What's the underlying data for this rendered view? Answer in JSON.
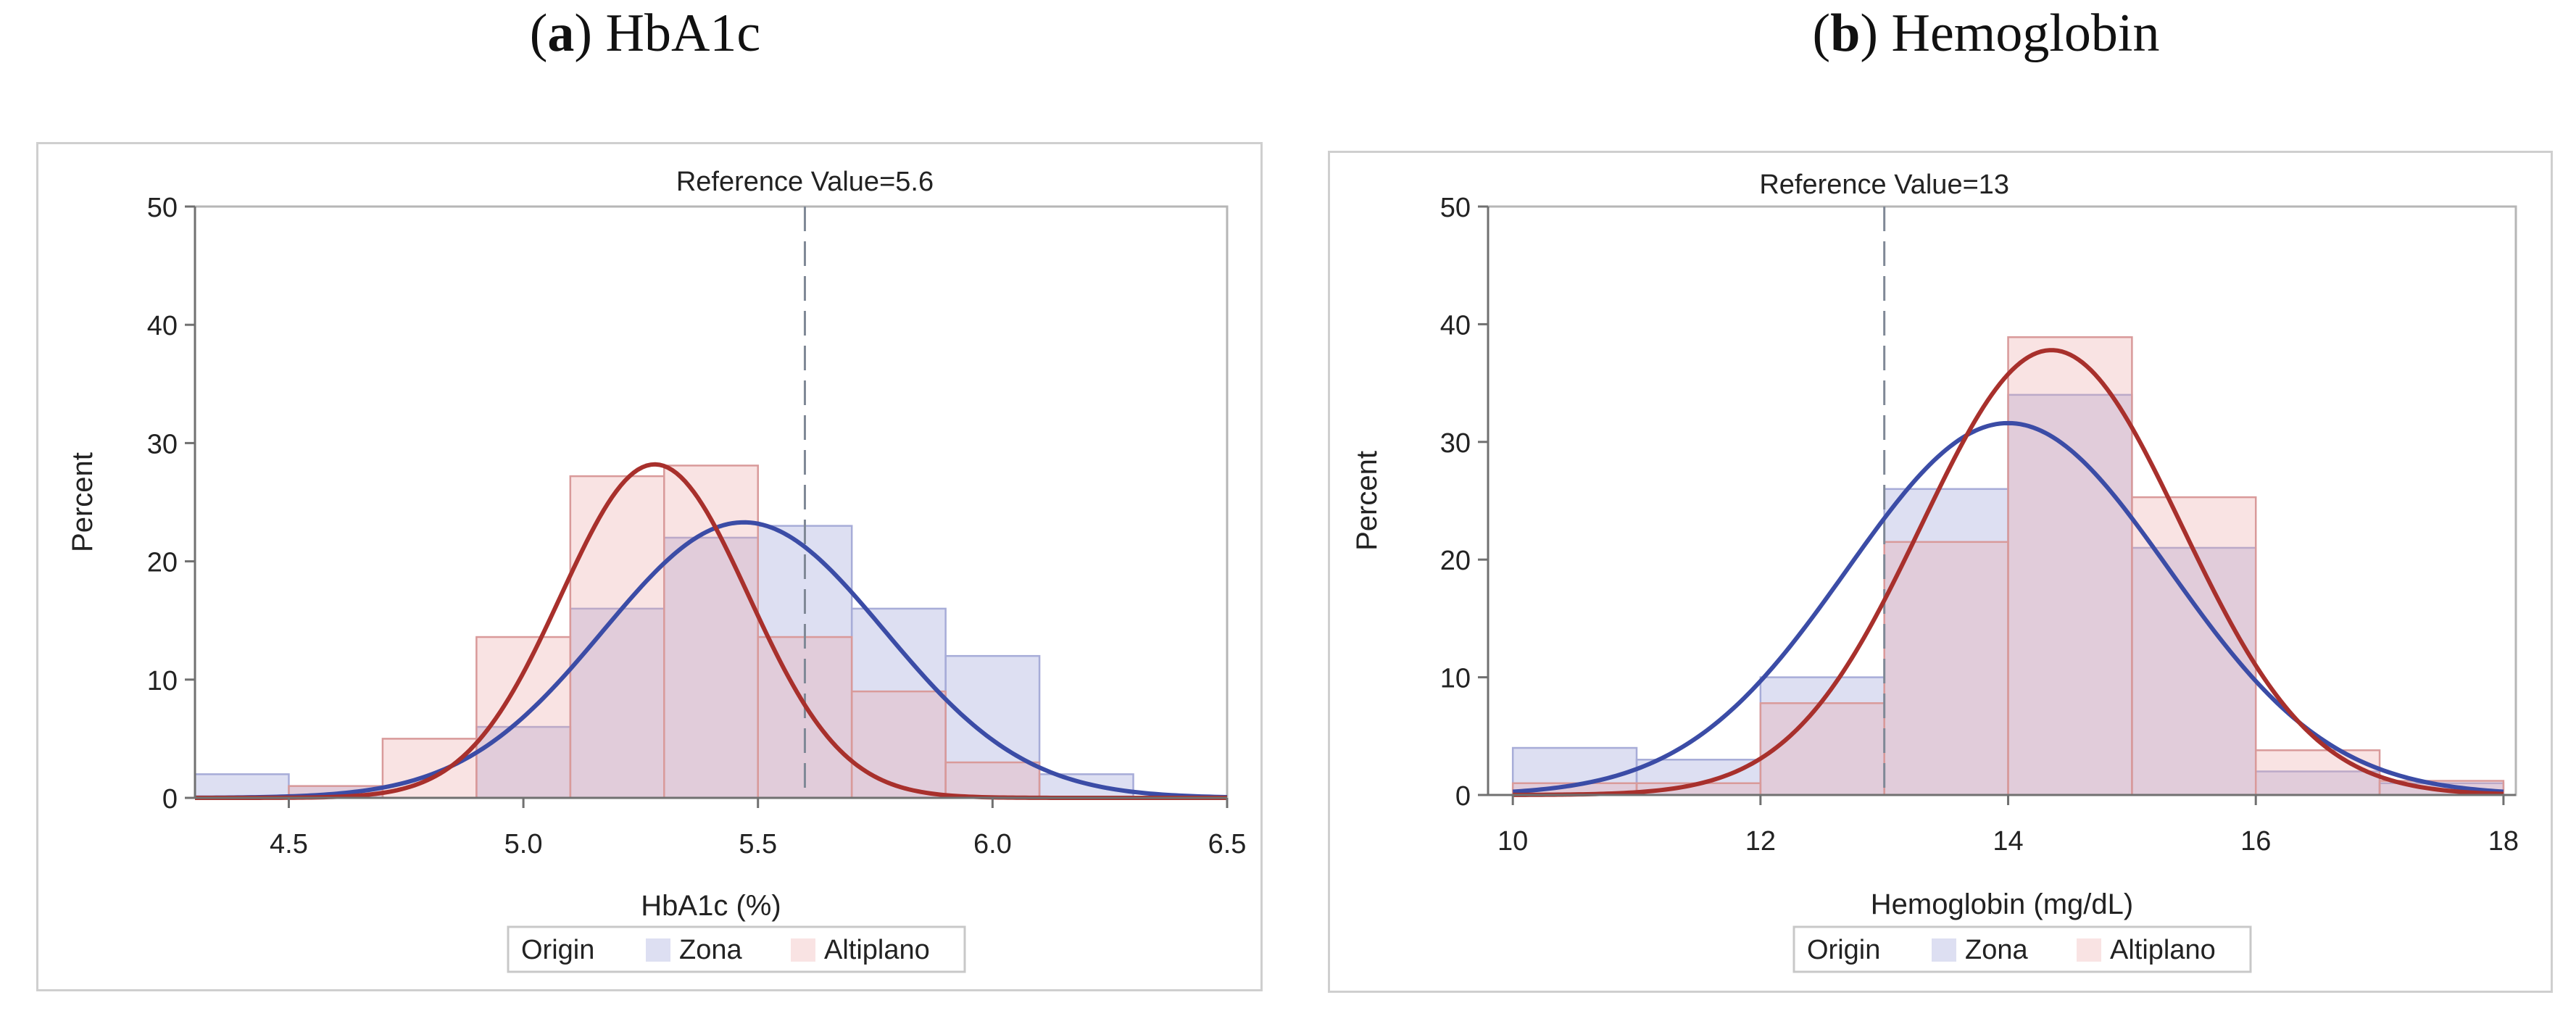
{
  "panels": {
    "a": {
      "label": "a",
      "title": "HbA1c"
    },
    "b": {
      "label": "b",
      "title": "Hemoglobin"
    }
  },
  "colors": {
    "zona_fill": "#8f96d4",
    "altiplano_fill": "#eca1a1",
    "zona_curve": "#3b4ca6",
    "altiplano_curve": "#a8302c",
    "reference_line": "#7f8896",
    "axis": "#707070",
    "plot_border": "#b6b6b6"
  },
  "chart_data": [
    {
      "type": "bar",
      "panel": "a",
      "title": "(a) HbA1c",
      "xlabel": "HbA1c (%)",
      "ylabel": "Percent",
      "xlim": [
        4.3,
        6.5
      ],
      "ylim": [
        0,
        50
      ],
      "xticks": [
        4.5,
        5.0,
        5.5,
        6.0,
        6.5
      ],
      "xtick_labels": [
        "4.5",
        "5.0",
        "5.5",
        "6.0",
        "6.5"
      ],
      "yticks": [
        0,
        10,
        20,
        30,
        40,
        50
      ],
      "ytick_labels": [
        "0",
        "10",
        "20",
        "30",
        "40",
        "50"
      ],
      "reference": {
        "value": 5.6,
        "label": "Reference Value=5.6"
      },
      "legend": {
        "title": "Origin",
        "entries": [
          "Zona",
          "Altiplano"
        ],
        "placement": "bottom"
      },
      "bin_edges": [
        4.3,
        4.5,
        4.7,
        4.9,
        5.1,
        5.3,
        5.5,
        5.7,
        5.9,
        6.1,
        6.3
      ],
      "series": [
        {
          "name": "Zona",
          "values": [
            2,
            1,
            0,
            6,
            16,
            22,
            23,
            16,
            12,
            2
          ],
          "normal_fit": {
            "mean": 5.47,
            "sd": 0.3,
            "peak": 23.3
          }
        },
        {
          "name": "Altiplano",
          "values": [
            0,
            1,
            5,
            13.6,
            27.2,
            28.1,
            13.6,
            9,
            3,
            0
          ],
          "normal_fit": {
            "mean": 5.28,
            "sd": 0.2,
            "peak": 28.2
          }
        }
      ],
      "curve_range": [
        4.3,
        6.5
      ]
    },
    {
      "type": "bar",
      "panel": "b",
      "title": "(b) Hemoglobin",
      "xlabel": "Hemoglobin (mg/dL)",
      "ylabel": "Percent",
      "xlim": [
        9.8,
        18.1
      ],
      "ylim": [
        0,
        50
      ],
      "xticks": [
        10,
        12,
        14,
        16,
        18
      ],
      "xtick_labels": [
        "10",
        "12",
        "14",
        "16",
        "18"
      ],
      "yticks": [
        0,
        10,
        20,
        30,
        40,
        50
      ],
      "ytick_labels": [
        "0",
        "10",
        "20",
        "30",
        "40",
        "50"
      ],
      "reference": {
        "value": 13,
        "label": "Reference Value=13"
      },
      "legend": {
        "title": "Origin",
        "entries": [
          "Zona",
          "Altiplano"
        ],
        "placement": "bottom"
      },
      "bin_edges": [
        10,
        11,
        12,
        13,
        14,
        15,
        16,
        17,
        18
      ],
      "series": [
        {
          "name": "Zona",
          "values": [
            4,
            3,
            10,
            26,
            34,
            21,
            2,
            1
          ],
          "normal_fit": {
            "mean": 14.0,
            "sd": 1.3,
            "peak": 31.6
          }
        },
        {
          "name": "Altiplano",
          "values": [
            1,
            1,
            7.8,
            21.5,
            38.9,
            25.3,
            3.8,
            1.2
          ],
          "normal_fit": {
            "mean": 14.35,
            "sd": 1.05,
            "peak": 37.8
          }
        }
      ],
      "curve_range": [
        10,
        18
      ]
    }
  ]
}
